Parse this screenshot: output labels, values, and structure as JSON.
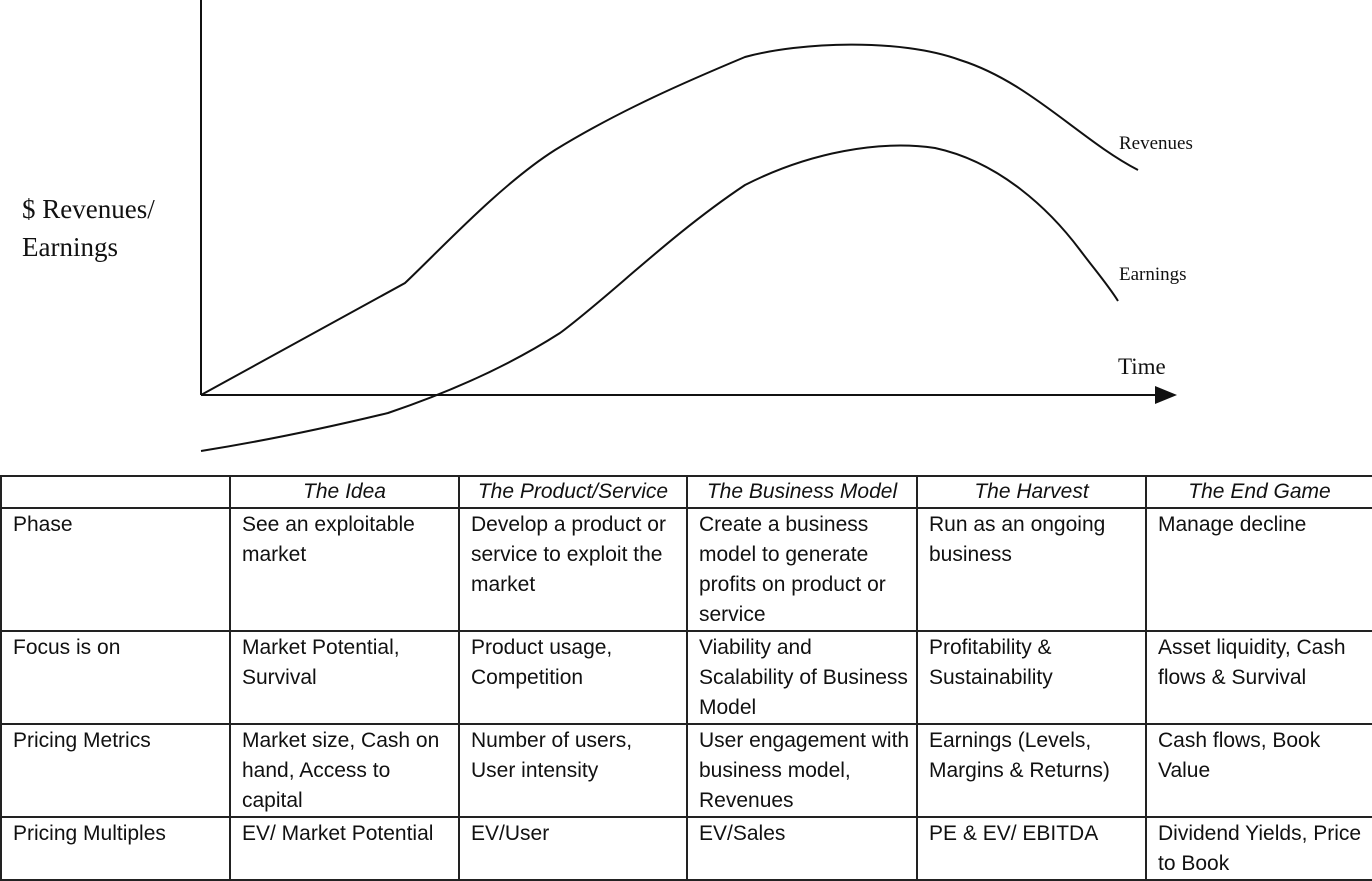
{
  "chart": {
    "ylabel_line1": "$ Revenues/",
    "ylabel_line2": "Earnings",
    "xlabel": "Time",
    "revenues_label": "Revenues",
    "earnings_label": "Earnings"
  },
  "table": {
    "header": [
      "",
      "The Idea",
      "The Product/Service",
      "The Business Model",
      "The Harvest",
      "The End Game"
    ],
    "rows": [
      {
        "label": "Phase",
        "cells": [
          "See an exploitable market",
          "Develop a product or service to exploit the market",
          "Create a business model to generate profits on product or service",
          "Run as an ongoing business",
          "Manage decline"
        ]
      },
      {
        "label": "Focus is on",
        "cells": [
          "Market Potential, Survival",
          "Product usage, Competition",
          "Viability and Scalability of Business Model",
          "Profitability & Sustainability",
          "Asset liquidity, Cash flows & Survival"
        ]
      },
      {
        "label": "Pricing Metrics",
        "cells": [
          "Market size, Cash on hand, Access to capital",
          "Number of users, User intensity",
          "User engagement with business model, Revenues",
          "Earnings (Levels, Margins & Returns)",
          "Cash flows, Book Value"
        ]
      },
      {
        "label": "Pricing Multiples",
        "cells": [
          "EV/ Market Potential",
          "EV/User",
          "EV/Sales",
          "PE & EV/ EBITDA",
          "Dividend Yields, Price to Book"
        ]
      }
    ]
  }
}
